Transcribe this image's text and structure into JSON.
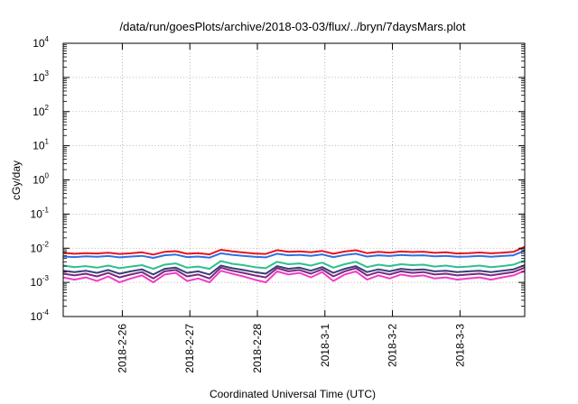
{
  "chart_data": {
    "type": "line",
    "title": "/data/run/goesPlots/archive/2018-03-03/flux/../bryn/7daysMars.plot",
    "xlabel": "Coordinated Universal Time (UTC)",
    "ylabel": "cGy/day",
    "yscale": "log",
    "ylim": [
      0.0001,
      10000
    ],
    "xlim": [
      "2018-02-25 03:00",
      "2018-03-03 23:00"
    ],
    "grid": true,
    "legend": "none",
    "x_ticks": [
      {
        "label": "2018-2-26",
        "value": "2018-02-26"
      },
      {
        "label": "2018-2-27",
        "value": "2018-02-27"
      },
      {
        "label": "2018-2-28",
        "value": "2018-02-28"
      },
      {
        "label": "2018-3-1",
        "value": "2018-03-01"
      },
      {
        "label": "2018-3-2",
        "value": "2018-03-02"
      },
      {
        "label": "2018-3-3",
        "value": "2018-03-03"
      }
    ],
    "y_ticks": [
      {
        "base": "10",
        "exp": "4",
        "value": 10000
      },
      {
        "base": "10",
        "exp": "3",
        "value": 1000
      },
      {
        "base": "10",
        "exp": "2",
        "value": 100
      },
      {
        "base": "10",
        "exp": "1",
        "value": 10
      },
      {
        "base": "10",
        "exp": "0",
        "value": 1
      },
      {
        "base": "10",
        "exp": "-1",
        "value": 0.1
      },
      {
        "base": "10",
        "exp": "-2",
        "value": 0.01
      },
      {
        "base": "10",
        "exp": "-3",
        "value": 0.001
      },
      {
        "base": "10",
        "exp": "-4",
        "value": 0.0001
      }
    ],
    "x": [
      "2018-02-25 03:00",
      "2018-02-25 07:00",
      "2018-02-25 11:00",
      "2018-02-25 15:00",
      "2018-02-25 19:00",
      "2018-02-25 23:00",
      "2018-02-26 03:00",
      "2018-02-26 07:00",
      "2018-02-26 11:00",
      "2018-02-26 15:00",
      "2018-02-26 19:00",
      "2018-02-26 23:00",
      "2018-02-27 03:00",
      "2018-02-27 07:00",
      "2018-02-27 11:00",
      "2018-02-27 15:00",
      "2018-02-27 19:00",
      "2018-02-27 23:00",
      "2018-02-28 03:00",
      "2018-02-28 07:00",
      "2018-02-28 11:00",
      "2018-02-28 15:00",
      "2018-02-28 19:00",
      "2018-02-28 23:00",
      "2018-03-01 03:00",
      "2018-03-01 07:00",
      "2018-03-01 11:00",
      "2018-03-01 15:00",
      "2018-03-01 19:00",
      "2018-03-01 23:00",
      "2018-03-02 03:00",
      "2018-03-02 07:00",
      "2018-03-02 11:00",
      "2018-03-02 15:00",
      "2018-03-02 19:00",
      "2018-03-02 23:00",
      "2018-03-03 03:00",
      "2018-03-03 07:00",
      "2018-03-03 11:00",
      "2018-03-03 15:00",
      "2018-03-03 19:00",
      "2018-03-03 23:00"
    ],
    "series": [
      {
        "color": "#e8131f",
        "values": [
          0.0073,
          0.0069,
          0.0072,
          0.007,
          0.0074,
          0.0068,
          0.0071,
          0.0076,
          0.0065,
          0.0078,
          0.0082,
          0.0069,
          0.0072,
          0.0066,
          0.009,
          0.0081,
          0.0075,
          0.007,
          0.0068,
          0.0088,
          0.0078,
          0.0081,
          0.0076,
          0.0083,
          0.0069,
          0.008,
          0.0087,
          0.0072,
          0.0078,
          0.0074,
          0.008,
          0.0077,
          0.0079,
          0.0073,
          0.0076,
          0.007,
          0.0072,
          0.0075,
          0.0071,
          0.0074,
          0.0078,
          0.011
        ]
      },
      {
        "color": "#2f6fe0",
        "values": [
          0.0057,
          0.0055,
          0.0058,
          0.0056,
          0.0059,
          0.0054,
          0.0057,
          0.006,
          0.0052,
          0.0062,
          0.0065,
          0.0055,
          0.0057,
          0.0053,
          0.0071,
          0.0064,
          0.006,
          0.0056,
          0.0054,
          0.0069,
          0.0062,
          0.0064,
          0.006,
          0.0066,
          0.0055,
          0.0063,
          0.0069,
          0.0057,
          0.0062,
          0.0059,
          0.0063,
          0.0061,
          0.0062,
          0.0058,
          0.006,
          0.0056,
          0.0057,
          0.006,
          0.0056,
          0.0059,
          0.0062,
          0.0085
        ]
      },
      {
        "color": "#2fbf8f",
        "values": [
          0.0031,
          0.0028,
          0.003,
          0.0027,
          0.0031,
          0.0026,
          0.0029,
          0.0032,
          0.0025,
          0.0033,
          0.0036,
          0.0027,
          0.0029,
          0.0025,
          0.0042,
          0.0035,
          0.0032,
          0.0028,
          0.0026,
          0.004,
          0.0034,
          0.0036,
          0.0031,
          0.0038,
          0.0027,
          0.0034,
          0.004,
          0.0028,
          0.0033,
          0.003,
          0.0034,
          0.0032,
          0.0033,
          0.0029,
          0.0031,
          0.0028,
          0.0029,
          0.0031,
          0.0028,
          0.003,
          0.0033,
          0.0044
        ]
      },
      {
        "color": "#3c3c7a",
        "values": [
          0.0022,
          0.002,
          0.0022,
          0.0019,
          0.0023,
          0.0018,
          0.0021,
          0.0024,
          0.0017,
          0.0025,
          0.0027,
          0.0019,
          0.0021,
          0.0017,
          0.0031,
          0.0026,
          0.0023,
          0.002,
          0.0018,
          0.003,
          0.0025,
          0.0027,
          0.0022,
          0.0028,
          0.0019,
          0.0025,
          0.003,
          0.002,
          0.0024,
          0.0021,
          0.0025,
          0.0023,
          0.0024,
          0.0021,
          0.0022,
          0.002,
          0.0021,
          0.0022,
          0.002,
          0.0022,
          0.0024,
          0.0032
        ]
      },
      {
        "color": "#7a2a7a",
        "values": [
          0.0018,
          0.0016,
          0.0018,
          0.0015,
          0.0019,
          0.0014,
          0.0017,
          0.002,
          0.0013,
          0.0021,
          0.0023,
          0.0015,
          0.0017,
          0.0013,
          0.0027,
          0.0022,
          0.0019,
          0.0016,
          0.0014,
          0.0026,
          0.0021,
          0.0023,
          0.0018,
          0.0024,
          0.0015,
          0.0021,
          0.0026,
          0.0016,
          0.002,
          0.0017,
          0.0021,
          0.0019,
          0.002,
          0.0017,
          0.0018,
          0.0016,
          0.0017,
          0.0018,
          0.0016,
          0.0018,
          0.002,
          0.0027
        ]
      },
      {
        "color": "#f03cc8",
        "values": [
          0.0014,
          0.0012,
          0.0014,
          0.0011,
          0.0015,
          0.001,
          0.0013,
          0.0016,
          0.001,
          0.0017,
          0.0019,
          0.0011,
          0.0013,
          0.001,
          0.0022,
          0.0018,
          0.0015,
          0.0012,
          0.001,
          0.0021,
          0.0017,
          0.0019,
          0.0014,
          0.002,
          0.0011,
          0.0017,
          0.0021,
          0.0012,
          0.0016,
          0.0013,
          0.0017,
          0.0015,
          0.0016,
          0.0013,
          0.0014,
          0.0012,
          0.0013,
          0.0014,
          0.0012,
          0.0014,
          0.0016,
          0.0022
        ]
      }
    ]
  }
}
